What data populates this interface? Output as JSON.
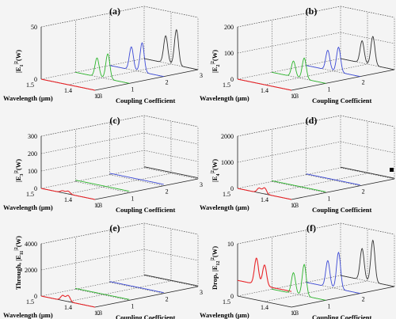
{
  "figure": {
    "background": "#f4f4f4",
    "marker_color": "#000000"
  },
  "colors": {
    "red": "#e8262a",
    "green": "#2bb52b",
    "blue": "#3b49d6",
    "black": "#333333",
    "grid": "#555555",
    "axis": "#222222"
  },
  "chart_data": [
    {
      "type": "line",
      "panel_label": "(a)",
      "ylabel": "|E",
      "ylabel_sub": "1",
      "ylabel_sup": "2",
      "ylabel_unit": "(W)",
      "zlim": [
        0,
        50
      ],
      "z_ticks": [
        "0",
        "50"
      ],
      "xlabel": "Wavelength (μm)",
      "x_ticks": [
        "1.5",
        "1.4",
        "1.3"
      ],
      "coupling_label": "Coupling Coefficient",
      "coupling_ticks": [
        "0",
        "1",
        "2",
        "3"
      ],
      "series": [
        {
          "color": "red",
          "coupling": 0,
          "peaks": [],
          "baseline": 0
        },
        {
          "color": "green",
          "coupling": 1,
          "peaks": [
            {
              "w": 1.42,
              "v": 18
            },
            {
              "w": 1.38,
              "v": 24
            }
          ],
          "baseline": 0
        },
        {
          "color": "blue",
          "coupling": 2,
          "peaks": [
            {
              "w": 1.42,
              "v": 22
            },
            {
              "w": 1.38,
              "v": 28
            }
          ],
          "baseline": 0
        },
        {
          "color": "black",
          "coupling": 3,
          "peaks": [
            {
              "w": 1.42,
              "v": 26
            },
            {
              "w": 1.38,
              "v": 34
            }
          ],
          "baseline": 0
        }
      ]
    },
    {
      "type": "line",
      "panel_label": "(b)",
      "ylabel": "|E",
      "ylabel_sub": "2",
      "ylabel_sup": "2",
      "ylabel_unit": "(W)",
      "zlim": [
        0,
        200
      ],
      "z_ticks": [
        "0",
        "100",
        "200"
      ],
      "xlabel": "Wavelength (μm)",
      "x_ticks": [
        "1.5",
        "1.4",
        "1.3"
      ],
      "coupling_label": "Coupling Coefficient",
      "coupling_ticks": [
        "0",
        "1",
        "2",
        "3"
      ],
      "series": [
        {
          "color": "red",
          "coupling": 0,
          "peaks": [],
          "baseline": 0
        },
        {
          "color": "green",
          "coupling": 1,
          "peaks": [
            {
              "w": 1.42,
              "v": 60
            },
            {
              "w": 1.38,
              "v": 80
            }
          ],
          "baseline": 0
        },
        {
          "color": "blue",
          "coupling": 2,
          "peaks": [
            {
              "w": 1.42,
              "v": 75
            },
            {
              "w": 1.38,
              "v": 95
            }
          ],
          "baseline": 0
        },
        {
          "color": "black",
          "coupling": 3,
          "peaks": [
            {
              "w": 1.42,
              "v": 85
            },
            {
              "w": 1.38,
              "v": 110
            }
          ],
          "baseline": 0
        }
      ]
    },
    {
      "type": "line",
      "panel_label": "(c)",
      "ylabel": "|E",
      "ylabel_sub": "3",
      "ylabel_sup": "2",
      "ylabel_unit": "(W)",
      "zlim": [
        0,
        300
      ],
      "z_ticks": [
        "0",
        "100",
        "200",
        "300"
      ],
      "xlabel": "Wavelength (μm)",
      "x_ticks": [
        "1.5",
        "1.4",
        "1.3"
      ],
      "coupling_label": "Coupling Coefficient",
      "coupling_ticks": [
        "0",
        "1",
        "2",
        "3"
      ],
      "series": [
        {
          "color": "red",
          "coupling": 0,
          "peaks": [
            {
              "w": 1.42,
              "v": 12
            },
            {
              "w": 1.4,
              "v": 16
            }
          ],
          "baseline": 0
        },
        {
          "color": "green",
          "coupling": 1,
          "peaks": [],
          "baseline": 8
        },
        {
          "color": "blue",
          "coupling": 2,
          "peaks": [],
          "baseline": 8
        },
        {
          "color": "black",
          "coupling": 3,
          "peaks": [],
          "baseline": 6
        }
      ]
    },
    {
      "type": "line",
      "panel_label": "(d)",
      "ylabel": "|E",
      "ylabel_sub": "4",
      "ylabel_sup": "2",
      "ylabel_unit": "(W)",
      "zlim": [
        0,
        2000
      ],
      "z_ticks": [
        "0",
        "1000",
        "2000"
      ],
      "xlabel": "Wavelength (μm)",
      "x_ticks": [
        "1.5",
        "1.4",
        "1.3"
      ],
      "coupling_label": "Coupling Coefficient",
      "coupling_ticks": [
        "0",
        "1",
        "2",
        "3"
      ],
      "series": [
        {
          "color": "red",
          "coupling": 0,
          "peaks": [
            {
              "w": 1.42,
              "v": 180
            },
            {
              "w": 1.4,
              "v": 230
            }
          ],
          "baseline": 0
        },
        {
          "color": "green",
          "coupling": 1,
          "peaks": [],
          "baseline": 30
        },
        {
          "color": "blue",
          "coupling": 2,
          "peaks": [],
          "baseline": 30
        },
        {
          "color": "black",
          "coupling": 3,
          "peaks": [],
          "baseline": 25
        }
      ]
    },
    {
      "type": "line",
      "panel_label": "(e)",
      "ylabel": "Through, |E",
      "ylabel_sub": "11",
      "ylabel_sup": "2",
      "ylabel_unit": "(W)",
      "zlim": [
        0,
        4000
      ],
      "z_ticks": [
        "0",
        "2000",
        "4000"
      ],
      "xlabel": "Wavelength (μm)",
      "x_ticks": [
        "1.5",
        "1.4",
        "1.3"
      ],
      "coupling_label": "Coupling Coefficient",
      "coupling_ticks": [
        "0",
        "1",
        "2",
        "3"
      ],
      "series": [
        {
          "color": "red",
          "coupling": 0,
          "peaks": [
            {
              "w": 1.42,
              "v": 380
            },
            {
              "w": 1.4,
              "v": 460
            }
          ],
          "baseline": 0
        },
        {
          "color": "green",
          "coupling": 1,
          "peaks": [],
          "baseline": 60
        },
        {
          "color": "blue",
          "coupling": 2,
          "peaks": [],
          "baseline": 60
        },
        {
          "color": "black",
          "coupling": 3,
          "peaks": [],
          "baseline": 50
        }
      ]
    },
    {
      "type": "line",
      "panel_label": "(f)",
      "ylabel": "Drop, |E",
      "ylabel_sub": "12",
      "ylabel_sup": "2",
      "ylabel_unit": "(W)",
      "zlim": [
        0,
        10
      ],
      "z_ticks": [
        "0",
        "10"
      ],
      "xlabel": "Wavelength (μm)",
      "x_ticks": [
        "1.5",
        "1.4",
        "1.3"
      ],
      "coupling_label": "Coupling Coefficient",
      "coupling_ticks": [
        "0",
        "1",
        "2",
        "3"
      ],
      "series": [
        {
          "color": "red",
          "coupling": 0,
          "peaks": [
            {
              "w": 1.43,
              "v": 5
            },
            {
              "w": 1.4,
              "v": 4
            }
          ],
          "baseline": 3
        },
        {
          "color": "green",
          "coupling": 1,
          "peaks": [
            {
              "w": 1.42,
              "v": 4
            },
            {
              "w": 1.38,
              "v": 6
            }
          ],
          "baseline": 0
        },
        {
          "color": "blue",
          "coupling": 2,
          "peaks": [
            {
              "w": 1.42,
              "v": 5
            },
            {
              "w": 1.38,
              "v": 7
            }
          ],
          "baseline": 0
        },
        {
          "color": "black",
          "coupling": 3,
          "peaks": [
            {
              "w": 1.42,
              "v": 6
            },
            {
              "w": 1.38,
              "v": 8
            }
          ],
          "baseline": 0
        }
      ]
    }
  ]
}
